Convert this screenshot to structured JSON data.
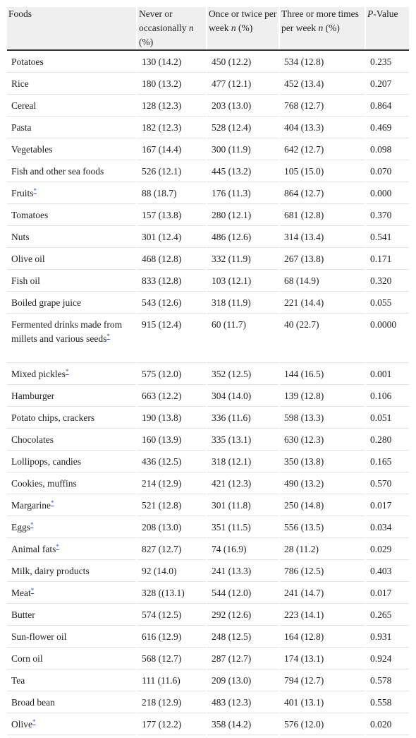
{
  "table": {
    "header": [
      [
        "Foods"
      ],
      [
        "Never or occasionally ",
        "n",
        " (%)"
      ],
      [
        "Once or twice per week ",
        "n",
        " (%)"
      ],
      [
        "Three or more times per week ",
        "n",
        " (%)"
      ],
      [
        "P",
        "-Value"
      ]
    ],
    "rows": [
      {
        "food": "Potatoes",
        "cells": [
          "130 (14.2)",
          "450 (12.2)",
          "534 (12.8)",
          "0.235"
        ]
      },
      {
        "food": "Rice",
        "cells": [
          "180 (13.2)",
          "477 (12.1)",
          "452 (13.4)",
          "0.207"
        ]
      },
      {
        "food": "Cereal",
        "cells": [
          "128 (12.3)",
          "203 (13.0)",
          "768 (12.7)",
          "0.864"
        ]
      },
      {
        "food": "Pasta",
        "cells": [
          "182 (12.3)",
          "528 (12.4)",
          "404 (13.3)",
          "0.469"
        ]
      },
      {
        "food": "Vegetables",
        "cells": [
          "167 (14.4)",
          "300 (11.9)",
          "642 (12.7)",
          "0.098"
        ]
      },
      {
        "food": "Fish and other sea foods",
        "cells": [
          "526 (12.1)",
          "445 (13.2)",
          "105 (15.0)",
          "0.070"
        ]
      },
      {
        "food": "Fruits",
        "note": "*",
        "cells": [
          "88 (18.7)",
          "176 (11.3)",
          "864 (12.7)",
          "0.000"
        ]
      },
      {
        "food": "Tomatoes",
        "cells": [
          "157 (13.8)",
          "280 (12.1)",
          "681 (12.8)",
          "0.370"
        ]
      },
      {
        "food": "Nuts",
        "cells": [
          "301 (12.4)",
          "486 (12.6)",
          "314 (13.4)",
          "0.541"
        ]
      },
      {
        "food": "Olive oil",
        "cells": [
          "468 (12.8)",
          "332 (11.9)",
          "267 (13.8)",
          "0.171"
        ]
      },
      {
        "food": "Fish oil",
        "cells": [
          "833 (12.8)",
          "103 (12.1)",
          "68 (14.9)",
          "0.320"
        ]
      },
      {
        "food": "Boiled grape juice",
        "cells": [
          "543 (12.6)",
          "318 (11.9)",
          "221 (14.4)",
          "0.055"
        ]
      },
      {
        "food": "Fermented drinks made from millets and various seeds",
        "note": "*",
        "cells": [
          "915 (12.4)",
          "60 (11.7)",
          "40 (22.7)",
          "0.0000"
        ]
      },
      {
        "food": "Mixed pickles",
        "note": "*",
        "cells": [
          "575 (12.0)",
          "352 (12.5)",
          "144 (16.5)",
          "0.001"
        ]
      },
      {
        "food": "Hamburger",
        "cells": [
          "663 (12.2)",
          "304 (14.0)",
          "139 (12.8)",
          "0.106"
        ]
      },
      {
        "food": "Potato chips, crackers",
        "cells": [
          "190 (13.8)",
          "336 (11.6)",
          "598 (13.3)",
          "0.051"
        ]
      },
      {
        "food": "Chocolates",
        "cells": [
          "160 (13.9)",
          "335 (13.1)",
          "630 (12.3)",
          "0.280"
        ]
      },
      {
        "food": "Lollipops, candies",
        "cells": [
          "436 (12.5)",
          "318 (12.1)",
          "350 (13.8)",
          "0.165"
        ]
      },
      {
        "food": "Cookies, muffins",
        "cells": [
          "214 (12.9)",
          "421 (12.3)",
          "490 (13.2)",
          "0.570"
        ]
      },
      {
        "food": "Margarine",
        "note": "*",
        "cells": [
          "521 (12.8)",
          "301 (11.8)",
          "250 (14.8)",
          "0.017"
        ]
      },
      {
        "food": "Eggs",
        "note": "*",
        "cells": [
          "208 (13.0)",
          "351 (11.5)",
          "556 (13.5)",
          "0.034"
        ]
      },
      {
        "food": "Animal fats",
        "note": "*",
        "cells": [
          "827 (12.7)",
          "74 (16.9)",
          "28 (11.2)",
          "0.029"
        ]
      },
      {
        "food": "Milk, dairy products",
        "cells": [
          "92 (14.0)",
          "241 (13.3)",
          "786 (12.5)",
          "0.403"
        ]
      },
      {
        "food": "Meat",
        "note": "*",
        "cells": [
          "328 ((13.1)",
          "544 (12.0)",
          "241 (14.7)",
          "0.017"
        ]
      },
      {
        "food": "Butter",
        "cells": [
          "574 (12.5)",
          "292 (12.6)",
          "223 (14.1)",
          "0.265"
        ]
      },
      {
        "food": "Sun-flower oil",
        "cells": [
          "616 (12.9)",
          "248 (12.5)",
          "164 (12.8)",
          "0.931"
        ]
      },
      {
        "food": "Corn oil",
        "cells": [
          "568 (12.7)",
          "287 (12.7)",
          "174 (13.1)",
          "0.924"
        ]
      },
      {
        "food": "Tea",
        "cells": [
          "111 (11.6)",
          "209 (13.0)",
          "794 (12.7)",
          "0.578"
        ]
      },
      {
        "food": "Broad bean",
        "cells": [
          "218 (12.9)",
          "483 (12.3)",
          "401 (13.1)",
          "0.558"
        ]
      },
      {
        "food": "Olive",
        "note": "*",
        "cells": [
          "177 (12.2)",
          "358 (14.2)",
          "576 (12.0)",
          "0.020"
        ]
      }
    ]
  }
}
